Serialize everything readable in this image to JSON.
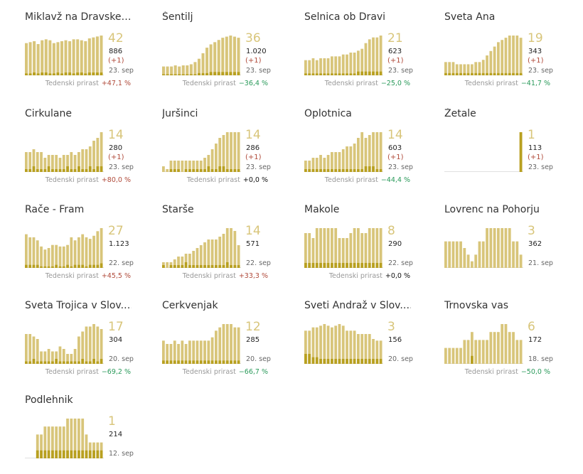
{
  "growth_label": "Tedenski prirast",
  "colors": {
    "bar_main": "#d8c57a",
    "bar_sub": "#b8a020",
    "big_number": "#d8c57a",
    "positive": "#b04a3a",
    "negative": "#2a9a5a"
  },
  "chart_data": [
    {
      "type": "bar",
      "title": "Miklavž na Dravske…",
      "big": "42",
      "total": "886",
      "inc": "(+1)",
      "date": "23. sep",
      "growth": "+47,1 %",
      "trend": "pos",
      "values": [
        34,
        35,
        36,
        33,
        37,
        38,
        37,
        34,
        35,
        36,
        37,
        36,
        38,
        38,
        37,
        36,
        39,
        40,
        41,
        42
      ],
      "sub": [
        2,
        2,
        3,
        2,
        3,
        3,
        2,
        2,
        3,
        2,
        3,
        3,
        2,
        3,
        3,
        2,
        3,
        3,
        3,
        3
      ]
    },
    {
      "type": "bar",
      "title": "Šentilj",
      "big": "36",
      "total": "1.020",
      "inc": "(+1)",
      "date": "23. sep",
      "growth": "−36,4 %",
      "trend": "neg",
      "values": [
        8,
        8,
        8,
        9,
        8,
        9,
        9,
        10,
        12,
        15,
        20,
        25,
        28,
        30,
        32,
        34,
        35,
        36,
        35,
        34
      ],
      "sub": [
        1,
        1,
        1,
        1,
        1,
        1,
        1,
        1,
        1,
        2,
        2,
        2,
        3,
        3,
        3,
        3,
        3,
        3,
        3,
        3
      ]
    },
    {
      "type": "bar",
      "title": "Selnica ob Dravi",
      "big": "21",
      "total": "623",
      "inc": "(+1)",
      "date": "23. sep",
      "growth": "−25,0 %",
      "trend": "neg",
      "values": [
        8,
        8,
        9,
        8,
        9,
        9,
        9,
        10,
        10,
        10,
        11,
        11,
        12,
        12,
        13,
        14,
        17,
        19,
        20,
        20,
        21
      ],
      "sub": [
        1,
        1,
        1,
        1,
        1,
        1,
        1,
        1,
        1,
        1,
        1,
        1,
        1,
        1,
        2,
        2,
        2,
        2,
        2,
        2,
        2
      ]
    },
    {
      "type": "bar",
      "title": "Sveta Ana",
      "big": "19",
      "total": "343",
      "inc": "(+1)",
      "date": "23. sep",
      "growth": "−41,7 %",
      "trend": "neg",
      "values": [
        6,
        6,
        6,
        5,
        5,
        5,
        5,
        5,
        6,
        6,
        7,
        9,
        11,
        13,
        15,
        16,
        17,
        18,
        18,
        18,
        17
      ],
      "sub": [
        1,
        1,
        1,
        1,
        1,
        1,
        1,
        1,
        1,
        1,
        1,
        1,
        1,
        1,
        1,
        1,
        1,
        1,
        1,
        1,
        1
      ]
    },
    {
      "type": "bar",
      "title": "Cirkulane",
      "big": "14",
      "total": "280",
      "inc": "(+1)",
      "date": "23. sep",
      "growth": "+80,0 %",
      "trend": "pos",
      "values": [
        7,
        7,
        8,
        7,
        7,
        5,
        6,
        6,
        6,
        5,
        6,
        6,
        7,
        6,
        7,
        8,
        8,
        9,
        11,
        12,
        14
      ],
      "sub": [
        1,
        1,
        2,
        1,
        1,
        1,
        2,
        1,
        1,
        1,
        1,
        2,
        1,
        1,
        2,
        1,
        1,
        2,
        1,
        2,
        2
      ]
    },
    {
      "type": "bar",
      "title": "Juršinci",
      "big": "14",
      "total": "286",
      "inc": "(+1)",
      "date": "23. sep",
      "growth": "+0,0 %",
      "trend": "zero",
      "values": [
        2,
        1,
        4,
        4,
        4,
        4,
        4,
        4,
        4,
        4,
        4,
        5,
        6,
        8,
        10,
        12,
        13,
        14,
        14,
        14,
        14
      ],
      "sub": [
        0,
        0,
        1,
        1,
        1,
        0,
        1,
        1,
        1,
        1,
        1,
        1,
        2,
        1,
        1,
        2,
        2,
        1,
        1,
        1,
        1
      ]
    },
    {
      "type": "bar",
      "title": "Oplotnica",
      "big": "14",
      "total": "603",
      "inc": "(+1)",
      "date": "23. sep",
      "growth": "−44,4 %",
      "trend": "neg",
      "values": [
        4,
        4,
        5,
        5,
        6,
        5,
        6,
        7,
        7,
        7,
        8,
        9,
        9,
        10,
        12,
        14,
        12,
        13,
        14,
        14,
        14
      ],
      "sub": [
        1,
        1,
        1,
        1,
        1,
        1,
        1,
        1,
        1,
        1,
        1,
        1,
        1,
        1,
        1,
        1,
        2,
        2,
        2,
        1,
        1
      ]
    },
    {
      "type": "bar",
      "title": "Žetale",
      "big": "1",
      "total": "113",
      "inc": "(+1)",
      "date": "23. sep",
      "growth": "",
      "trend": "zero",
      "values": [
        0,
        0,
        0,
        0,
        0,
        0,
        0,
        0,
        0,
        0,
        0,
        0,
        0,
        0,
        0,
        0,
        0,
        0,
        0,
        0,
        1
      ],
      "sub": [
        0,
        0,
        0,
        0,
        0,
        0,
        0,
        0,
        0,
        0,
        0,
        0,
        0,
        0,
        0,
        0,
        0,
        0,
        0,
        0,
        1
      ]
    },
    {
      "type": "bar",
      "title": "Rače - Fram",
      "big": "27",
      "total": "1.123",
      "inc": "",
      "date": "22. sep",
      "growth": "+45,5 %",
      "trend": "pos",
      "values": [
        22,
        20,
        20,
        18,
        14,
        12,
        13,
        15,
        15,
        14,
        14,
        15,
        20,
        18,
        20,
        22,
        20,
        19,
        21,
        24,
        26
      ],
      "sub": [
        2,
        2,
        2,
        2,
        1,
        1,
        1,
        1,
        2,
        1,
        1,
        2,
        1,
        2,
        2,
        2,
        1,
        2,
        2,
        2,
        3
      ]
    },
    {
      "type": "bar",
      "title": "Starše",
      "big": "14",
      "total": "571",
      "inc": "",
      "date": "22. sep",
      "growth": "+33,3 %",
      "trend": "pos",
      "values": [
        2,
        2,
        2,
        3,
        4,
        4,
        5,
        5,
        6,
        7,
        8,
        9,
        10,
        10,
        10,
        11,
        12,
        14,
        14,
        13,
        8
      ],
      "sub": [
        1,
        0,
        1,
        1,
        1,
        1,
        2,
        1,
        1,
        1,
        1,
        1,
        1,
        1,
        1,
        1,
        1,
        2,
        1,
        1,
        1
      ]
    },
    {
      "type": "bar",
      "title": "Makole",
      "big": "8",
      "total": "290",
      "inc": "",
      "date": "22. sep",
      "growth": "+0,0 %",
      "trend": "zero",
      "values": [
        7,
        7,
        6,
        8,
        8,
        8,
        8,
        8,
        8,
        6,
        6,
        6,
        7,
        8,
        8,
        7,
        7,
        8,
        8,
        8,
        8
      ],
      "sub": [
        1,
        1,
        1,
        1,
        1,
        1,
        1,
        1,
        1,
        1,
        1,
        1,
        1,
        1,
        1,
        1,
        1,
        1,
        1,
        1,
        1
      ]
    },
    {
      "type": "bar",
      "title": "Lovrenc na Pohorju",
      "big": "3",
      "total": "362",
      "inc": "",
      "date": "21. sep",
      "growth": "",
      "trend": "zero",
      "values": [
        2,
        2,
        2,
        2,
        2,
        1.5,
        1,
        0.5,
        1,
        2,
        2,
        3,
        3,
        3,
        3,
        3,
        3,
        3,
        2,
        2,
        1
      ],
      "sub": [
        0,
        0,
        0,
        0,
        0,
        0,
        0,
        0,
        0,
        0,
        0,
        0,
        0,
        0,
        0,
        0,
        0,
        0,
        0,
        0,
        0
      ]
    },
    {
      "type": "bar",
      "title": "Sveta Trojica v Slov.…",
      "big": "17",
      "total": "304",
      "inc": "",
      "date": "20. sep",
      "growth": "−69,2 %",
      "trend": "neg",
      "values": [
        12,
        12,
        11,
        10,
        5,
        5,
        6,
        5,
        5,
        7,
        6,
        4,
        4,
        6,
        11,
        13,
        15,
        15,
        16,
        15,
        14
      ],
      "sub": [
        1,
        1,
        2,
        1,
        1,
        1,
        1,
        1,
        2,
        1,
        1,
        1,
        1,
        1,
        1,
        2,
        1,
        1,
        2,
        1,
        2
      ]
    },
    {
      "type": "bar",
      "title": "Cerkvenjak",
      "big": "12",
      "total": "285",
      "inc": "",
      "date": "20. sep",
      "growth": "−66,7 %",
      "trend": "neg",
      "values": [
        7,
        6,
        6,
        7,
        6,
        7,
        6,
        7,
        7,
        7,
        7,
        7,
        7,
        8,
        10,
        11,
        12,
        12,
        12,
        11,
        11
      ],
      "sub": [
        1,
        1,
        1,
        1,
        1,
        1,
        1,
        1,
        1,
        1,
        1,
        1,
        1,
        1,
        1,
        1,
        1,
        1,
        1,
        1,
        1
      ]
    },
    {
      "type": "bar",
      "title": "Sveti Andraž v Slov.…",
      "big": "3",
      "total": "156",
      "inc": "",
      "date": "20. sep",
      "growth": "",
      "trend": "zero",
      "values": [
        2,
        2,
        2.2,
        2.2,
        2.3,
        2.4,
        2.3,
        2.2,
        2.3,
        2.4,
        2.3,
        2,
        2,
        2,
        1.8,
        1.8,
        1.8,
        1.8,
        1.5,
        1.4,
        1.4
      ],
      "sub": [
        0.6,
        0.6,
        0.4,
        0.4,
        0.3,
        0.3,
        0.3,
        0.3,
        0.3,
        0.3,
        0.3,
        0.3,
        0.3,
        0.3,
        0.3,
        0.3,
        0.3,
        0.3,
        0.3,
        0.3,
        0.3
      ]
    },
    {
      "type": "bar",
      "title": "Trnovska vas",
      "big": "6",
      "total": "172",
      "inc": "",
      "date": "18. sep",
      "growth": "−50,0 %",
      "trend": "neg",
      "values": [
        2,
        2,
        2,
        2,
        2,
        3,
        3,
        4,
        3,
        3,
        3,
        3,
        4,
        4,
        4,
        5,
        5,
        4,
        4,
        3,
        3
      ],
      "sub": [
        0,
        0,
        0,
        0,
        0,
        0,
        0,
        1,
        0,
        0,
        0,
        0,
        0,
        0,
        0,
        0,
        0,
        0,
        0,
        0,
        0
      ]
    },
    {
      "type": "bar",
      "title": "Podlehnik",
      "big": "1",
      "total": "214",
      "inc": "",
      "date": "12. sep",
      "growth": "",
      "trend": "zero",
      "values": [
        0,
        0,
        0,
        0.6,
        0.6,
        0.8,
        0.8,
        0.8,
        0.8,
        0.8,
        0.8,
        1,
        1,
        1,
        1,
        1,
        0.6,
        0.4,
        0.4,
        0.4,
        0.4
      ],
      "sub": [
        0,
        0,
        0,
        0.2,
        0.2,
        0.2,
        0.2,
        0.2,
        0.2,
        0.2,
        0.2,
        0.2,
        0.2,
        0.2,
        0.2,
        0.2,
        0.2,
        0.2,
        0.2,
        0.2,
        0.2
      ]
    }
  ]
}
